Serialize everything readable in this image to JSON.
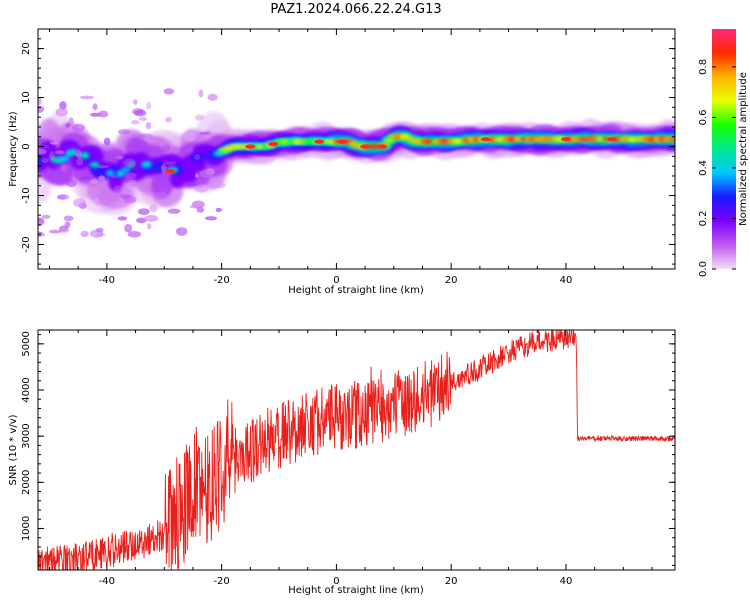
{
  "title": "PAZ1.2024.066.22.24.G13",
  "colors": {
    "snr_line": "#e8201c",
    "colormap": [
      "#f3ddf6",
      "#c05af0",
      "#7a00ff",
      "#1a1aff",
      "#00c8ff",
      "#00e890",
      "#18ff00",
      "#e6ff00",
      "#ffb400",
      "#ff2a00",
      "#ff2a7a"
    ]
  },
  "chart_data": [
    {
      "type": "heatmap",
      "name": "spectrogram",
      "xlabel": "Height of straight line (km)",
      "ylabel": "Frequency (Hz)",
      "xlim": [
        -52,
        59
      ],
      "ylim": [
        -25,
        24
      ],
      "xticks": [
        -40,
        -20,
        0,
        20,
        40
      ],
      "yticks": [
        -20,
        -10,
        0,
        10,
        20
      ],
      "colorbar": {
        "label": "Normalized spectral amplitude",
        "range": [
          0,
          0.95
        ],
        "ticks": [
          "0.0",
          "0.2",
          "0.4",
          "0.6",
          "0.8"
        ]
      },
      "ridge": {
        "x": [
          -50,
          -48,
          -46,
          -44,
          -42,
          -40,
          -38,
          -36,
          -34,
          -32,
          -30,
          -28,
          -26,
          -24,
          -22,
          -20,
          -18,
          -16,
          -14,
          -12,
          -10,
          -8,
          -6,
          -4,
          -2,
          0,
          2,
          4,
          6,
          8,
          10,
          12,
          14,
          16,
          18,
          20,
          25,
          30,
          35,
          40,
          45,
          50,
          55,
          59
        ],
        "y": [
          -2,
          -3,
          -1,
          -2,
          -4,
          -5,
          -6,
          -4,
          -3,
          -5,
          -5,
          -5,
          -4,
          -3,
          -2,
          -1,
          0,
          0,
          0,
          0,
          1,
          1,
          1,
          1,
          1,
          1,
          1,
          0,
          0,
          0,
          2,
          2,
          1,
          1,
          1,
          1,
          1.5,
          1.5,
          1.5,
          1.5,
          1.5,
          1.5,
          1.5,
          1.5
        ]
      }
    },
    {
      "type": "line",
      "name": "snr",
      "xlabel": "Height of straight line (km)",
      "ylabel": "SNR (10 * v/v)",
      "xlim": [
        -52,
        59
      ],
      "ylim": [
        100,
        5300
      ],
      "xticks": [
        -40,
        -20,
        0,
        20,
        40
      ],
      "yticks": [
        1000,
        2000,
        3000,
        4000,
        5000
      ],
      "envelope": {
        "x": [
          -52,
          -45,
          -40,
          -35,
          -30,
          -27,
          -25,
          -22,
          -20,
          -15,
          -10,
          -5,
          0,
          5,
          10,
          15,
          20,
          25,
          30,
          35,
          40,
          41.8,
          42,
          50,
          59
        ],
        "y": [
          250,
          350,
          500,
          650,
          900,
          1400,
          1900,
          2000,
          2300,
          2700,
          3000,
          3300,
          3400,
          3500,
          3650,
          3850,
          4150,
          4450,
          4800,
          5050,
          5100,
          5150,
          2950,
          2950,
          2950
        ]
      }
    }
  ]
}
